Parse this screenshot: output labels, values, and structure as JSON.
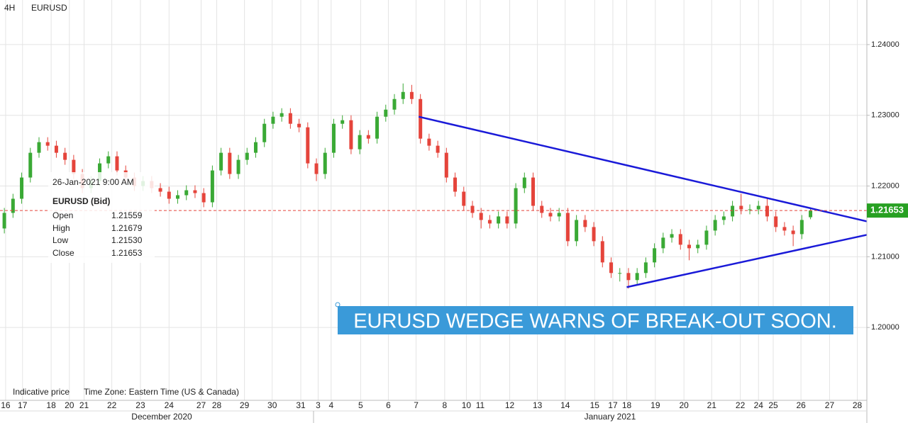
{
  "chart_data": {
    "type": "candlestick",
    "timeframe": "4H",
    "symbol": "EURUSD",
    "footnote": "Indicative price",
    "timezone": "Time Zone: Eastern Time (US & Canada)",
    "annotation": "EURUSD WEDGE WARNS OF BREAK-OUT SOON.",
    "months": [
      "December 2020",
      "January 2021"
    ],
    "up_color": "#3aa935",
    "down_color": "#e5443b",
    "trendline_color": "#1a1ad8",
    "last_price": 1.21653,
    "last_price_color": "#e5443b",
    "tag_color": "#27a022",
    "grid": true,
    "tooltip": {
      "date": "26-Jan-2021 9:00 AM",
      "symbol": "EURUSD (Bid)",
      "rows": [
        {
          "label": "Open",
          "value": "1.21559"
        },
        {
          "label": "High",
          "value": "1.21679"
        },
        {
          "label": "Low",
          "value": "1.21530"
        },
        {
          "label": "Close",
          "value": "1.21653"
        }
      ]
    },
    "xlim": [
      0,
      100
    ],
    "ylim": [
      1.1897,
      1.2463
    ],
    "yticks": [
      {
        "value": 1.24,
        "label": "1.24000"
      },
      {
        "value": 1.23,
        "label": "1.23000"
      },
      {
        "value": 1.22,
        "label": "1.22000"
      },
      {
        "value": 1.21,
        "label": "1.21000"
      },
      {
        "value": 1.2,
        "label": "1.20000"
      }
    ],
    "xticks": [
      {
        "value": 0.65,
        "label": "16"
      },
      {
        "value": 2.6,
        "label": "17"
      },
      {
        "value": 5.9,
        "label": "18"
      },
      {
        "value": 8.0,
        "label": "20"
      },
      {
        "value": 9.7,
        "label": "21"
      },
      {
        "value": 12.9,
        "label": "22"
      },
      {
        "value": 16.2,
        "label": "23"
      },
      {
        "value": 19.5,
        "label": "24"
      },
      {
        "value": 23.2,
        "label": "27"
      },
      {
        "value": 25.0,
        "label": "28"
      },
      {
        "value": 28.2,
        "label": "29"
      },
      {
        "value": 31.4,
        "label": "30"
      },
      {
        "value": 34.7,
        "label": "31"
      },
      {
        "value": 36.7,
        "label": "3"
      },
      {
        "value": 38.2,
        "label": "4"
      },
      {
        "value": 41.6,
        "label": "5"
      },
      {
        "value": 44.8,
        "label": "6"
      },
      {
        "value": 48.0,
        "label": "7"
      },
      {
        "value": 51.3,
        "label": "8"
      },
      {
        "value": 53.8,
        "label": "10"
      },
      {
        "value": 55.4,
        "label": "11"
      },
      {
        "value": 58.8,
        "label": "12"
      },
      {
        "value": 62.0,
        "label": "13"
      },
      {
        "value": 65.2,
        "label": "14"
      },
      {
        "value": 68.6,
        "label": "15"
      },
      {
        "value": 70.7,
        "label": "17"
      },
      {
        "value": 72.3,
        "label": "18"
      },
      {
        "value": 75.6,
        "label": "19"
      },
      {
        "value": 78.9,
        "label": "20"
      },
      {
        "value": 82.1,
        "label": "21"
      },
      {
        "value": 85.4,
        "label": "22"
      },
      {
        "value": 87.5,
        "label": "24"
      },
      {
        "value": 89.2,
        "label": "25"
      },
      {
        "value": 92.4,
        "label": "26"
      },
      {
        "value": 95.7,
        "label": "27"
      },
      {
        "value": 98.9,
        "label": "28"
      }
    ],
    "trendlines": [
      {
        "x": [
          48.3,
          100
        ],
        "y": [
          1.2298,
          1.215
        ]
      },
      {
        "x": [
          72.3,
          100
        ],
        "y": [
          1.2057,
          1.2131
        ]
      }
    ],
    "x": [
      0.5,
      1.5,
      2.5,
      3.5,
      4.5,
      5.5,
      6.5,
      7.5,
      8.5,
      9.5,
      10.5,
      11.5,
      12.5,
      13.5,
      14.5,
      15.5,
      16.5,
      17.5,
      18.5,
      19.5,
      20.5,
      21.5,
      22.5,
      23.5,
      24.5,
      25.5,
      26.5,
      27.5,
      28.5,
      29.5,
      30.5,
      31.5,
      32.5,
      33.5,
      34.5,
      35.5,
      36.5,
      37.5,
      38.5,
      39.5,
      40.5,
      41.5,
      42.5,
      43.5,
      44.5,
      45.5,
      46.5,
      47.5,
      48.5,
      49.5,
      50.5,
      51.5,
      52.5,
      53.5,
      54.5,
      55.5,
      56.5,
      57.5,
      58.5,
      59.5,
      60.5,
      61.5,
      62.5,
      63.5,
      64.5,
      65.5,
      66.5,
      67.5,
      68.5,
      69.5,
      70.5,
      71.5,
      72.5,
      73.5,
      74.5,
      75.5,
      76.5,
      77.5,
      78.5,
      79.5,
      80.5,
      81.5,
      82.5,
      83.5,
      84.5,
      85.5,
      86.5,
      87.5,
      88.5,
      89.5,
      90.5,
      91.5,
      92.5,
      93.5
    ],
    "open": [
      1.214,
      1.2162,
      1.2182,
      1.2212,
      1.2247,
      1.2262,
      1.2257,
      1.2247,
      1.2237,
      1.2217,
      1.2197,
      1.2207,
      1.2232,
      1.2242,
      1.2222,
      1.2212,
      1.22,
      1.2207,
      1.2197,
      1.2192,
      1.2182,
      1.2187,
      1.2194,
      1.219,
      1.2177,
      1.2222,
      1.2247,
      1.2217,
      1.2237,
      1.2247,
      1.2262,
      1.2288,
      1.2298,
      1.2303,
      1.2288,
      1.2283,
      1.2232,
      1.2217,
      1.2247,
      1.2288,
      1.2293,
      1.2252,
      1.2272,
      1.2267,
      1.2298,
      1.2308,
      1.2323,
      1.2333,
      1.2323,
      1.2267,
      1.2257,
      1.2247,
      1.2212,
      1.2192,
      1.2172,
      1.2162,
      1.2152,
      1.2147,
      1.2157,
      1.2147,
      1.2197,
      1.2212,
      1.2172,
      1.2162,
      1.2157,
      1.2162,
      1.2122,
      1.2152,
      1.2142,
      1.2122,
      1.2092,
      1.2077,
      1.2077,
      1.2067,
      1.2077,
      1.2092,
      1.2112,
      1.2127,
      1.2132,
      1.2117,
      1.2112,
      1.2117,
      1.2137,
      1.2152,
      1.2157,
      1.2172,
      1.2167,
      1.2167,
      1.2172,
      1.2157,
      1.2142,
      1.2137,
      1.2132,
      1.21559
    ],
    "high": [
      1.2169,
      1.2189,
      1.2219,
      1.2254,
      1.2269,
      1.2269,
      1.2264,
      1.2254,
      1.2244,
      1.2224,
      1.2214,
      1.2239,
      1.2249,
      1.2249,
      1.2229,
      1.2219,
      1.2214,
      1.2214,
      1.2204,
      1.2199,
      1.2194,
      1.2201,
      1.2201,
      1.2197,
      1.2229,
      1.2254,
      1.2254,
      1.2244,
      1.2254,
      1.2269,
      1.2295,
      1.2305,
      1.231,
      1.231,
      1.2295,
      1.229,
      1.2239,
      1.2254,
      1.2295,
      1.23,
      1.23,
      1.2279,
      1.2279,
      1.2305,
      1.2315,
      1.233,
      1.2345,
      1.2343,
      1.233,
      1.2274,
      1.2264,
      1.2254,
      1.2219,
      1.2199,
      1.2179,
      1.2169,
      1.2159,
      1.2164,
      1.2164,
      1.2204,
      1.2219,
      1.2219,
      1.2179,
      1.2169,
      1.2169,
      1.2169,
      1.2159,
      1.2159,
      1.2149,
      1.2129,
      1.2099,
      1.2084,
      1.2084,
      1.2084,
      1.2099,
      1.2119,
      1.2134,
      1.2139,
      1.2139,
      1.2124,
      1.2124,
      1.2144,
      1.2159,
      1.2164,
      1.2179,
      1.2189,
      1.2174,
      1.2179,
      1.2182,
      1.2164,
      1.2149,
      1.2144,
      1.2159,
      1.21679
    ],
    "low": [
      1.2133,
      1.2155,
      1.2175,
      1.2205,
      1.224,
      1.225,
      1.224,
      1.223,
      1.221,
      1.219,
      1.219,
      1.22,
      1.2225,
      1.2215,
      1.2205,
      1.2193,
      1.2193,
      1.219,
      1.2185,
      1.2175,
      1.2175,
      1.218,
      1.2183,
      1.217,
      1.217,
      1.2215,
      1.221,
      1.221,
      1.223,
      1.224,
      1.2255,
      1.2281,
      1.2291,
      1.2281,
      1.2276,
      1.2225,
      1.2207,
      1.221,
      1.224,
      1.2281,
      1.2245,
      1.2245,
      1.226,
      1.226,
      1.2291,
      1.2301,
      1.2316,
      1.2316,
      1.226,
      1.225,
      1.224,
      1.2205,
      1.2185,
      1.2165,
      1.2155,
      1.214,
      1.214,
      1.214,
      1.214,
      1.214,
      1.219,
      1.2165,
      1.2155,
      1.215,
      1.215,
      1.2115,
      1.2115,
      1.2135,
      1.2115,
      1.2085,
      1.207,
      1.2065,
      1.2055,
      1.206,
      1.207,
      1.2085,
      1.2105,
      1.212,
      1.211,
      1.2095,
      1.2105,
      1.211,
      1.213,
      1.2145,
      1.215,
      1.216,
      1.216,
      1.216,
      1.215,
      1.2135,
      1.213,
      1.2115,
      1.2125,
      1.2153
    ],
    "close": [
      1.2162,
      1.2182,
      1.2212,
      1.2247,
      1.2262,
      1.2257,
      1.2247,
      1.2237,
      1.2217,
      1.2197,
      1.2207,
      1.2232,
      1.2242,
      1.2222,
      1.2212,
      1.22,
      1.2207,
      1.2197,
      1.2192,
      1.2182,
      1.2187,
      1.2194,
      1.219,
      1.2177,
      1.2222,
      1.2247,
      1.2217,
      1.2237,
      1.2247,
      1.2262,
      1.2288,
      1.2298,
      1.2303,
      1.2288,
      1.2283,
      1.2232,
      1.2217,
      1.2247,
      1.2288,
      1.2293,
      1.2252,
      1.2272,
      1.2267,
      1.2298,
      1.2308,
      1.2323,
      1.2333,
      1.2323,
      1.2267,
      1.2257,
      1.2247,
      1.2212,
      1.2192,
      1.2172,
      1.2162,
      1.2152,
      1.2147,
      1.2157,
      1.2147,
      1.2197,
      1.2212,
      1.2172,
      1.2162,
      1.2157,
      1.2162,
      1.2122,
      1.2152,
      1.2142,
      1.2122,
      1.2092,
      1.2077,
      1.2077,
      1.2067,
      1.2077,
      1.2092,
      1.2112,
      1.2127,
      1.2132,
      1.2117,
      1.2112,
      1.2117,
      1.2137,
      1.2152,
      1.2157,
      1.2172,
      1.2167,
      1.2167,
      1.2172,
      1.2157,
      1.2142,
      1.2137,
      1.2132,
      1.2152,
      1.21653
    ]
  }
}
